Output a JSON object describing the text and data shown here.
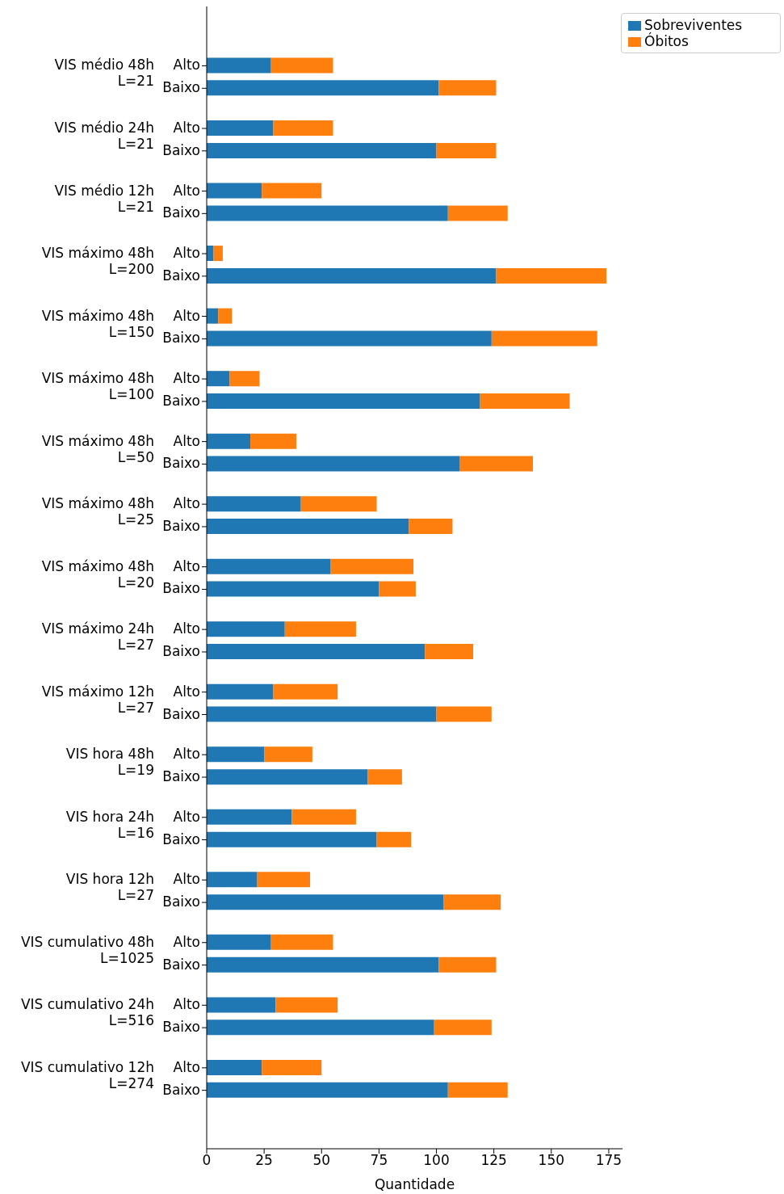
{
  "chart_data": {
    "type": "bar",
    "orientation": "horizontal",
    "stacked": true,
    "xlabel": "Quantidade",
    "categories": [
      "Alto",
      "Baixo",
      "Alto",
      "Baixo",
      "Alto",
      "Baixo",
      "Alto",
      "Baixo",
      "Alto",
      "Baixo",
      "Alto",
      "Baixo",
      "Alto",
      "Baixo",
      "Alto",
      "Baixo",
      "Alto",
      "Baixo",
      "Alto",
      "Baixo",
      "Alto",
      "Baixo",
      "Alto",
      "Baixo",
      "Alto",
      "Baixo",
      "Alto",
      "Baixo",
      "Alto",
      "Baixo",
      "Alto",
      "Baixo",
      "Alto",
      "Baixo"
    ],
    "annotations": [
      "VIS médio 48h\nL=21",
      "VIS médio 24h\nL=21",
      "VIS médio 12h\nL=21",
      "VIS máximo 48h\nL=200",
      "VIS máximo 48h\nL=150",
      "VIS máximo 48h\nL=100",
      "VIS máximo 48h\nL=50",
      "VIS máximo 48h\nL=25",
      "VIS máximo 48h\nL=20",
      "VIS máximo 24h\nL=27",
      "VIS máximo 12h\nL=27",
      "VIS hora 48h\nL=19",
      "VIS hora 24h\nL=16",
      "VIS hora 12h\nL=27",
      "VIS cumulativo 48h\nL=1025",
      "VIS cumulativo 24h\nL=516",
      "VIS cumulativo 12h\nL=274"
    ],
    "series": [
      {
        "name": "Sobreviventes",
        "color": "#1f77b4",
        "values": [
          28,
          101,
          29,
          100,
          24,
          105,
          3,
          126,
          5,
          124,
          10,
          119,
          19,
          110,
          41,
          88,
          54,
          75,
          34,
          95,
          29,
          100,
          25,
          70,
          37,
          74,
          22,
          103,
          28,
          101,
          30,
          99,
          24,
          105
        ]
      },
      {
        "name": "Óbitos",
        "color": "#ff7f0e",
        "values": [
          27,
          25,
          26,
          26,
          26,
          26,
          4,
          48,
          6,
          46,
          13,
          39,
          20,
          32,
          33,
          19,
          36,
          16,
          31,
          21,
          28,
          24,
          21,
          15,
          28,
          15,
          23,
          25,
          27,
          25,
          27,
          25,
          26,
          26
        ]
      }
    ],
    "xlim": [
      0,
      181
    ],
    "xticks": [
      0,
      25,
      50,
      75,
      100,
      125,
      150,
      175
    ],
    "legend": "top right"
  }
}
